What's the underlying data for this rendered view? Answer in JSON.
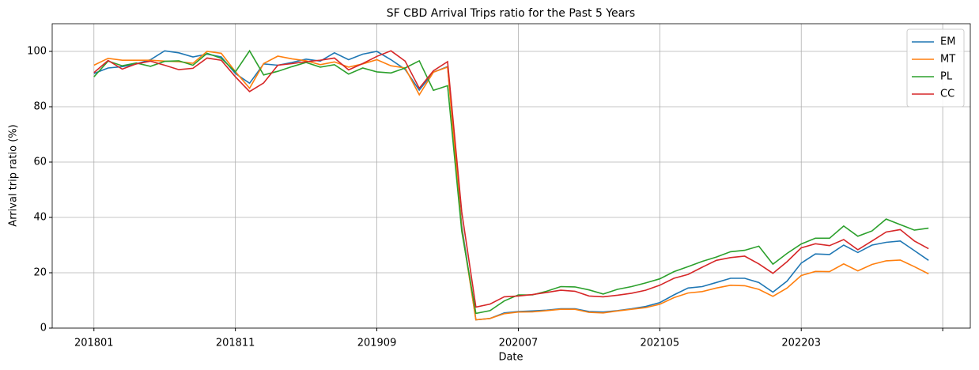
{
  "chart_data": {
    "type": "line",
    "title": "SF CBD Arrival Trips ratio for the Past 5 Years",
    "x_label": "Date",
    "y_label": "Arrival trip ratio (%)",
    "categories": [
      "201801",
      null,
      null,
      null,
      null,
      null,
      null,
      null,
      null,
      null,
      "201811",
      null,
      null,
      null,
      null,
      null,
      null,
      null,
      null,
      null,
      "201909",
      null,
      null,
      null,
      null,
      null,
      null,
      null,
      null,
      null,
      "202007",
      null,
      null,
      null,
      null,
      null,
      null,
      null,
      null,
      null,
      "202105",
      null,
      null,
      null,
      null,
      null,
      null,
      null,
      null,
      null,
      "202203",
      null,
      null,
      null,
      null,
      null,
      null,
      null,
      null,
      null
    ],
    "xlim": [
      -2.95,
      61.95
    ],
    "xticks": [
      0,
      10,
      20,
      30,
      40,
      50,
      60
    ],
    "ylim": [
      0,
      110
    ],
    "yticks": [
      0,
      20,
      40,
      60,
      80,
      100
    ],
    "grid": true,
    "legend": "upper right",
    "series": [
      {
        "name": "EM",
        "color": "#1f77b4",
        "values": [
          92,
          94,
          94.5,
          95.5,
          97,
          100.2,
          99.5,
          98,
          99,
          98,
          92,
          88.5,
          95.5,
          95,
          96,
          97.2,
          96.5,
          99.5,
          97,
          99,
          100,
          97,
          93.5,
          86,
          92.5,
          94.5,
          37,
          3,
          3.5,
          5.5,
          6,
          6.2,
          6.5,
          7,
          7,
          6,
          5.8,
          6.3,
          7,
          7.8,
          9.2,
          12,
          14.5,
          15,
          16.5,
          18,
          18,
          16.5,
          13,
          17,
          23.5,
          26.8,
          26.6,
          30,
          27.3,
          30,
          31,
          31.5,
          28,
          24.5
        ]
      },
      {
        "name": "MT",
        "color": "#ff7f0e",
        "values": [
          95,
          97.5,
          96.8,
          96.8,
          96.8,
          96.5,
          96.3,
          95.7,
          100,
          99.3,
          92.7,
          86.7,
          95.6,
          98.3,
          97.3,
          96.6,
          95.2,
          96.2,
          94.3,
          95.5,
          97,
          94.8,
          94,
          84.3,
          92.5,
          94.3,
          36,
          3,
          3.5,
          5.2,
          5.8,
          5.9,
          6.3,
          6.8,
          6.8,
          5.7,
          5.5,
          6.2,
          6.8,
          7.4,
          8.6,
          11,
          12.7,
          13.2,
          14.5,
          15.5,
          15.3,
          14,
          11.5,
          14.5,
          19,
          20.5,
          20.4,
          23.2,
          20.7,
          23,
          24.3,
          24.6,
          22.2,
          19.6
        ]
      },
      {
        "name": "PL",
        "color": "#2ca02c",
        "values": [
          90.8,
          96.5,
          94.8,
          95.8,
          94.6,
          96.4,
          96.6,
          95,
          99.3,
          97.5,
          92.6,
          100.2,
          91.5,
          92.8,
          94.5,
          96,
          94.3,
          95.2,
          91.8,
          94,
          92.6,
          92.2,
          94,
          96.6,
          85.9,
          87.6,
          35,
          5.3,
          6.3,
          9.8,
          12,
          12,
          13.3,
          15,
          14.9,
          13.8,
          12.3,
          14,
          15,
          16.3,
          17.8,
          20.4,
          22.2,
          24.1,
          25.7,
          27.6,
          28.1,
          29.6,
          23.1,
          27,
          30.4,
          32.5,
          32.5,
          36.9,
          33.2,
          35.1,
          39.4,
          37.4,
          35.4,
          36.1
        ]
      },
      {
        "name": "CC",
        "color": "#d62728",
        "values": [
          92.3,
          96.7,
          93.6,
          95.5,
          96.5,
          95,
          93.4,
          93.9,
          97.6,
          96.8,
          90.8,
          85.5,
          88.6,
          95,
          95.6,
          96.3,
          96.8,
          97.6,
          93.3,
          95.6,
          98.2,
          100.2,
          96.5,
          86.7,
          93,
          96.3,
          42,
          7.6,
          8.7,
          11.3,
          11.6,
          12.1,
          12.9,
          13.7,
          13.3,
          11.6,
          11.3,
          11.9,
          12.6,
          13.7,
          15.5,
          18,
          19.4,
          22,
          24.5,
          25.5,
          26,
          23.2,
          19.8,
          24,
          29,
          30.5,
          29.8,
          32,
          28.3,
          31.5,
          34.7,
          35.6,
          31.5,
          28.7
        ]
      }
    ]
  }
}
